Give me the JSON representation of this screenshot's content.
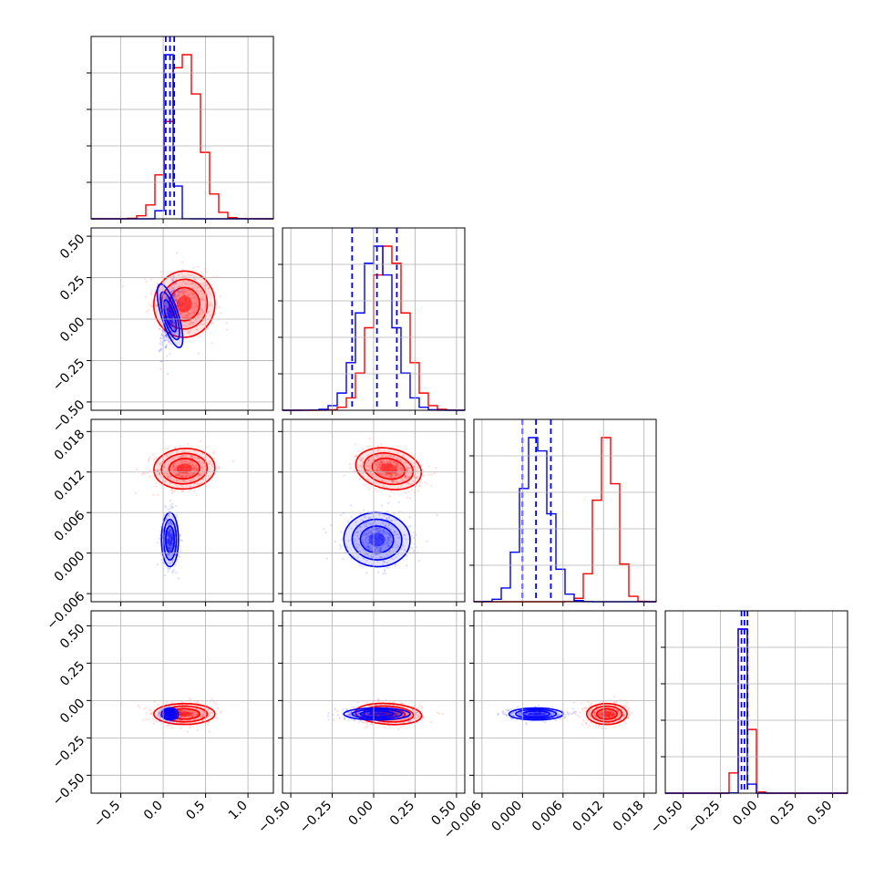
{
  "chart_data": {
    "type": "scatter",
    "subtype": "corner-plot",
    "title": "",
    "grid": true,
    "legend": "none",
    "n_params": 4,
    "colors": {
      "red": "#ff0000",
      "blue": "#0000ff"
    },
    "series": [
      {
        "color": "#ff0000",
        "means": [
          0.25,
          0.09,
          0.0125,
          -0.09
        ],
        "sds": [
          0.18,
          0.1,
          0.0015,
          0.035
        ]
      },
      {
        "color": "#0000ff",
        "means": [
          0.08,
          0.02,
          0.002,
          -0.09
        ],
        "sds": [
          0.05,
          0.1,
          0.002,
          0.02
        ]
      }
    ],
    "quantile_lines": {
      "color": "#0000ff",
      "style": "dashed",
      "values": [
        [
          0.03,
          0.08,
          0.13
        ],
        [
          -0.13,
          0.02,
          0.14
        ],
        [
          0.0,
          0.002,
          0.0042
        ],
        [
          -0.11,
          -0.09,
          -0.07
        ]
      ]
    },
    "axis_ranges": [
      [
        -0.85,
        1.3
      ],
      [
        -0.55,
        0.55
      ],
      [
        -0.0072,
        0.0198
      ],
      [
        -0.62,
        0.6
      ]
    ],
    "ticks": [
      {
        "values": [
          -0.5,
          0.0,
          0.5,
          1.0
        ],
        "labels": [
          "−0.5",
          "0.0",
          "0.5",
          "1.0"
        ]
      },
      {
        "values": [
          -0.5,
          -0.25,
          0.0,
          0.25,
          0.5
        ],
        "labels": [
          "−0.50",
          "−0.25",
          "0.00",
          "0.25",
          "0.50"
        ]
      },
      {
        "values": [
          -0.006,
          0.0,
          0.006,
          0.012,
          0.018
        ],
        "labels": [
          "−0.006",
          "0.000",
          "0.006",
          "0.012",
          "0.018"
        ]
      },
      {
        "values": [
          -0.5,
          -0.25,
          0.0,
          0.25,
          0.5
        ],
        "labels": [
          "−0.50",
          "−0.25",
          "0.00",
          "0.25",
          "0.50"
        ]
      }
    ]
  }
}
